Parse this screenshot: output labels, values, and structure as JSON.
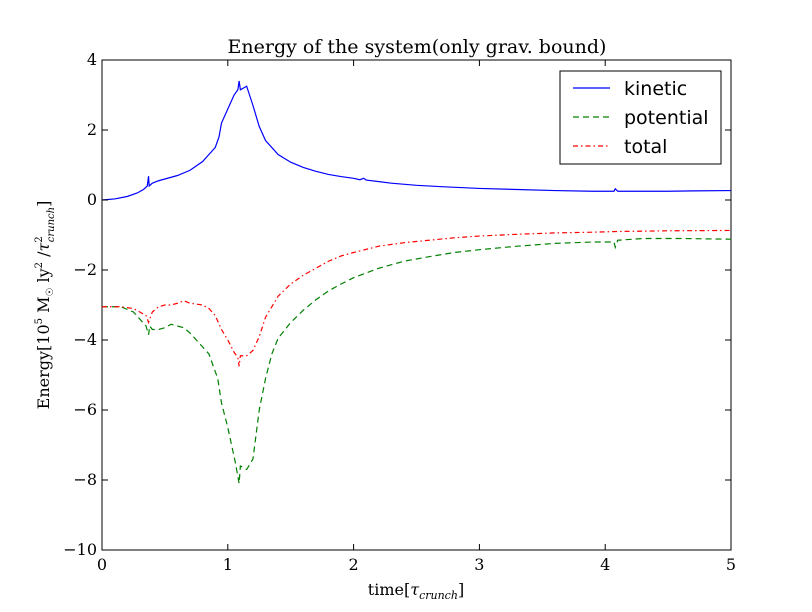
{
  "chart_data": {
    "type": "line",
    "title": "Energy of the system(only grav. bound)",
    "xlabel_main": "time[",
    "xlabel_sym": "τ",
    "xlabel_sub": "crunch",
    "xlabel_end": "]",
    "ylabel_main": "Energy[10",
    "ylabel_exp": "5",
    "ylabel_mid": " M",
    "ylabel_sun": "☉",
    "ylabel_ly": " ly",
    "ylabel_sq": "2",
    "ylabel_slash": " /",
    "ylabel_tau": "τ",
    "ylabel_tau_sup": "2",
    "ylabel_tau_sub": "crunch",
    "ylabel_end": "]",
    "xlim": [
      0,
      5
    ],
    "ylim": [
      -10,
      4
    ],
    "xticks": [
      0,
      1,
      2,
      3,
      4,
      5
    ],
    "xtick_labels": [
      "0",
      "1",
      "2",
      "3",
      "4",
      "5"
    ],
    "yticks": [
      -10,
      -8,
      -6,
      -4,
      -2,
      0,
      2,
      4
    ],
    "ytick_labels": [
      "−10",
      "−8",
      "−6",
      "−4",
      "−2",
      "0",
      "2",
      "4"
    ],
    "grid": false,
    "legend_position": "top-right",
    "series": [
      {
        "name": "kinetic",
        "color": "#0000ff",
        "style": "solid",
        "points": [
          [
            0,
            0
          ],
          [
            0.1,
            0.03
          ],
          [
            0.2,
            0.1
          ],
          [
            0.28,
            0.2
          ],
          [
            0.33,
            0.3
          ],
          [
            0.36,
            0.4
          ],
          [
            0.37,
            0.68
          ],
          [
            0.375,
            0.4
          ],
          [
            0.4,
            0.48
          ],
          [
            0.45,
            0.55
          ],
          [
            0.5,
            0.6
          ],
          [
            0.55,
            0.65
          ],
          [
            0.6,
            0.7
          ],
          [
            0.7,
            0.85
          ],
          [
            0.8,
            1.1
          ],
          [
            0.85,
            1.3
          ],
          [
            0.9,
            1.5
          ],
          [
            0.93,
            1.8
          ],
          [
            0.95,
            2.2
          ],
          [
            1.0,
            2.6
          ],
          [
            1.05,
            3.0
          ],
          [
            1.08,
            3.15
          ],
          [
            1.09,
            3.4
          ],
          [
            1.1,
            3.15
          ],
          [
            1.15,
            3.25
          ],
          [
            1.2,
            2.7
          ],
          [
            1.25,
            2.1
          ],
          [
            1.3,
            1.7
          ],
          [
            1.4,
            1.3
          ],
          [
            1.5,
            1.08
          ],
          [
            1.6,
            0.93
          ],
          [
            1.7,
            0.82
          ],
          [
            1.8,
            0.73
          ],
          [
            1.9,
            0.67
          ],
          [
            2.0,
            0.62
          ],
          [
            2.05,
            0.58
          ],
          [
            2.08,
            0.62
          ],
          [
            2.1,
            0.57
          ],
          [
            2.3,
            0.48
          ],
          [
            2.5,
            0.42
          ],
          [
            2.7,
            0.38
          ],
          [
            3.0,
            0.33
          ],
          [
            3.3,
            0.3
          ],
          [
            3.6,
            0.27
          ],
          [
            3.9,
            0.25
          ],
          [
            4.07,
            0.25
          ],
          [
            4.08,
            0.32
          ],
          [
            4.1,
            0.25
          ],
          [
            4.5,
            0.25
          ],
          [
            4.7,
            0.26
          ],
          [
            5.0,
            0.27
          ]
        ]
      },
      {
        "name": "potential",
        "color": "#008000",
        "style": "dashed",
        "points": [
          [
            0,
            -3.05
          ],
          [
            0.15,
            -3.05
          ],
          [
            0.25,
            -3.2
          ],
          [
            0.3,
            -3.4
          ],
          [
            0.35,
            -3.6
          ],
          [
            0.37,
            -3.85
          ],
          [
            0.38,
            -3.6
          ],
          [
            0.4,
            -3.7
          ],
          [
            0.45,
            -3.7
          ],
          [
            0.5,
            -3.65
          ],
          [
            0.55,
            -3.55
          ],
          [
            0.6,
            -3.6
          ],
          [
            0.65,
            -3.65
          ],
          [
            0.7,
            -3.8
          ],
          [
            0.75,
            -4.0
          ],
          [
            0.8,
            -4.2
          ],
          [
            0.85,
            -4.4
          ],
          [
            0.88,
            -4.7
          ],
          [
            0.92,
            -5.1
          ],
          [
            0.95,
            -5.8
          ],
          [
            1.0,
            -6.5
          ],
          [
            1.03,
            -7.0
          ],
          [
            1.06,
            -7.5
          ],
          [
            1.08,
            -7.9
          ],
          [
            1.09,
            -8.1
          ],
          [
            1.1,
            -7.6
          ],
          [
            1.15,
            -7.7
          ],
          [
            1.2,
            -7.4
          ],
          [
            1.25,
            -6.0
          ],
          [
            1.3,
            -5.1
          ],
          [
            1.35,
            -4.4
          ],
          [
            1.4,
            -3.95
          ],
          [
            1.5,
            -3.5
          ],
          [
            1.6,
            -3.15
          ],
          [
            1.7,
            -2.85
          ],
          [
            1.8,
            -2.6
          ],
          [
            1.9,
            -2.4
          ],
          [
            2.0,
            -2.22
          ],
          [
            2.2,
            -1.95
          ],
          [
            2.4,
            -1.75
          ],
          [
            2.6,
            -1.62
          ],
          [
            2.8,
            -1.5
          ],
          [
            3.0,
            -1.42
          ],
          [
            3.3,
            -1.32
          ],
          [
            3.6,
            -1.24
          ],
          [
            3.9,
            -1.2
          ],
          [
            4.07,
            -1.2
          ],
          [
            4.08,
            -1.35
          ],
          [
            4.1,
            -1.15
          ],
          [
            4.3,
            -1.1
          ],
          [
            4.6,
            -1.1
          ],
          [
            5.0,
            -1.12
          ]
        ]
      },
      {
        "name": "total",
        "color": "#ff0000",
        "style": "dashdot",
        "points": [
          [
            0,
            -3.05
          ],
          [
            0.15,
            -3.05
          ],
          [
            0.25,
            -3.1
          ],
          [
            0.3,
            -3.2
          ],
          [
            0.35,
            -3.3
          ],
          [
            0.37,
            -3.5
          ],
          [
            0.4,
            -3.2
          ],
          [
            0.45,
            -3.05
          ],
          [
            0.5,
            -3.0
          ],
          [
            0.55,
            -3.0
          ],
          [
            0.6,
            -2.95
          ],
          [
            0.65,
            -2.88
          ],
          [
            0.7,
            -2.95
          ],
          [
            0.8,
            -3.0
          ],
          [
            0.85,
            -3.1
          ],
          [
            0.9,
            -3.3
          ],
          [
            0.95,
            -3.7
          ],
          [
            1.0,
            -4.0
          ],
          [
            1.05,
            -4.35
          ],
          [
            1.08,
            -4.5
          ],
          [
            1.09,
            -4.75
          ],
          [
            1.1,
            -4.45
          ],
          [
            1.15,
            -4.45
          ],
          [
            1.2,
            -4.3
          ],
          [
            1.25,
            -3.9
          ],
          [
            1.3,
            -3.35
          ],
          [
            1.4,
            -2.75
          ],
          [
            1.5,
            -2.4
          ],
          [
            1.6,
            -2.15
          ],
          [
            1.7,
            -1.95
          ],
          [
            1.8,
            -1.75
          ],
          [
            1.9,
            -1.6
          ],
          [
            2.0,
            -1.5
          ],
          [
            2.2,
            -1.32
          ],
          [
            2.4,
            -1.22
          ],
          [
            2.6,
            -1.15
          ],
          [
            2.8,
            -1.08
          ],
          [
            3.0,
            -1.03
          ],
          [
            3.3,
            -0.98
          ],
          [
            3.6,
            -0.94
          ],
          [
            3.9,
            -0.92
          ],
          [
            4.1,
            -0.9
          ],
          [
            4.5,
            -0.88
          ],
          [
            5.0,
            -0.87
          ]
        ]
      }
    ]
  }
}
